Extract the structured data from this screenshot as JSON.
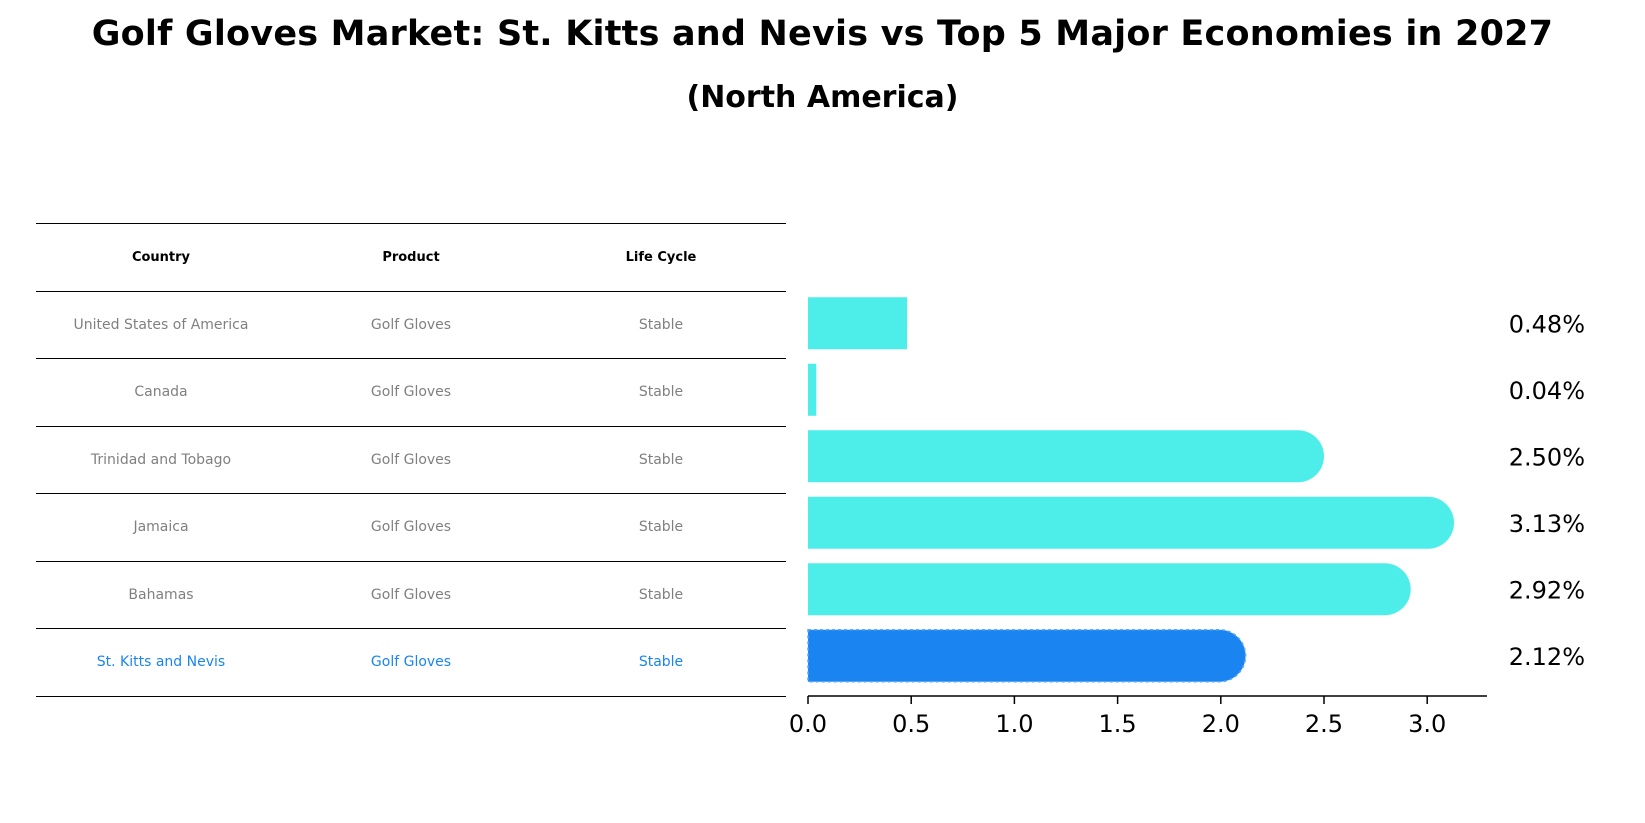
{
  "title": "Golf Gloves Market: St. Kitts and Nevis vs Top 5 Major Economies in 2027",
  "subtitle": "(North America)",
  "table": {
    "headers": [
      "Country",
      "Product",
      "Life Cycle"
    ],
    "rows": [
      [
        "United States of America",
        "Golf Gloves",
        "Stable"
      ],
      [
        "Canada",
        "Golf Gloves",
        "Stable"
      ],
      [
        "Trinidad and Tobago",
        "Golf Gloves",
        "Stable"
      ],
      [
        "Jamaica",
        "Golf Gloves",
        "Stable"
      ],
      [
        "Bahamas",
        "Golf Gloves",
        "Stable"
      ],
      [
        "St. Kitts and Nevis",
        "Golf Gloves",
        "Stable"
      ]
    ],
    "highlight_row": 5
  },
  "colors": {
    "bar": "#4deeea",
    "highlight": "#1a85f0",
    "table_text": "#808080"
  },
  "chart_data": {
    "type": "bar",
    "orientation": "horizontal",
    "categories": [
      "United States of America",
      "Canada",
      "Trinidad and Tobago",
      "Jamaica",
      "Bahamas",
      "St. Kitts and Nevis"
    ],
    "values": [
      0.48,
      0.04,
      2.5,
      3.13,
      2.92,
      2.12
    ],
    "value_labels": [
      "0.48%",
      "0.04%",
      "2.50%",
      "3.13%",
      "2.92%",
      "2.12%"
    ],
    "highlight_index": 5,
    "xlim": [
      0,
      3.29
    ],
    "xticks": [
      0.0,
      0.5,
      1.0,
      1.5,
      2.0,
      2.5,
      3.0
    ],
    "xtick_labels": [
      "0.0",
      "0.5",
      "1.0",
      "1.5",
      "2.0",
      "2.5",
      "3.0"
    ],
    "xlabel": "",
    "ylabel": "",
    "grid": false
  }
}
